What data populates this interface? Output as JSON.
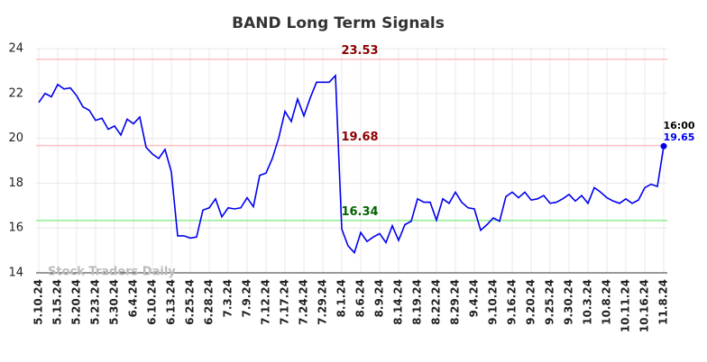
{
  "chart_data": {
    "type": "line",
    "title": "BAND Long Term Signals",
    "categories": [
      "5.10.24",
      null,
      null,
      "5.15.24",
      null,
      null,
      "5.20.24",
      null,
      null,
      "5.23.24",
      null,
      null,
      "5.30.24",
      null,
      null,
      "6.4.24",
      null,
      null,
      "6.10.24",
      null,
      null,
      "6.13.24",
      null,
      null,
      "6.25.24",
      null,
      null,
      "6.28.24",
      null,
      null,
      "7.3.24",
      null,
      null,
      "7.9.24",
      null,
      null,
      "7.12.24",
      null,
      null,
      "7.17.24",
      null,
      null,
      "7.24.24",
      null,
      null,
      "7.29.24",
      null,
      null,
      "8.1.24",
      null,
      null,
      "8.6.24",
      null,
      null,
      "8.9.24",
      null,
      null,
      "8.14.24",
      null,
      null,
      "8.19.24",
      null,
      null,
      "8.22.24",
      null,
      null,
      "8.29.24",
      null,
      null,
      "9.4.24",
      null,
      null,
      "9.10.24",
      null,
      null,
      "9.16.24",
      null,
      null,
      "9.20.24",
      null,
      null,
      "9.25.24",
      null,
      null,
      "9.30.24",
      null,
      null,
      "10.3.24",
      null,
      null,
      "10.8.24",
      null,
      null,
      "10.11.24",
      null,
      null,
      "10.16.24",
      null,
      null,
      "11.8.24"
    ],
    "values": [
      21.6,
      22.0,
      21.85,
      22.4,
      22.2,
      22.25,
      21.9,
      21.4,
      21.25,
      20.8,
      20.9,
      20.4,
      20.55,
      20.15,
      20.85,
      20.65,
      20.95,
      19.6,
      19.3,
      19.1,
      19.5,
      18.5,
      15.65,
      15.65,
      15.55,
      15.6,
      16.8,
      16.9,
      17.3,
      16.5,
      16.9,
      16.85,
      16.9,
      17.35,
      16.95,
      18.35,
      18.45,
      19.1,
      20.0,
      21.2,
      20.75,
      21.75,
      21.0,
      21.8,
      22.5,
      22.5,
      22.5,
      22.8,
      15.95,
      15.2,
      14.9,
      15.8,
      15.4,
      15.6,
      15.75,
      15.35,
      16.1,
      15.45,
      16.15,
      16.3,
      17.3,
      17.15,
      17.15,
      16.35,
      17.3,
      17.1,
      17.6,
      17.15,
      16.9,
      16.85,
      15.9,
      16.15,
      16.45,
      16.3,
      17.4,
      17.6,
      17.35,
      17.6,
      17.25,
      17.3,
      17.45,
      17.1,
      17.15,
      17.3,
      17.5,
      17.2,
      17.45,
      17.1,
      17.8,
      17.6,
      17.35,
      17.2,
      17.1,
      17.3,
      17.1,
      17.25,
      17.8,
      17.95,
      17.85,
      19.65
    ],
    "color": "#0000ee",
    "ylim": [
      14,
      24
    ],
    "yticks": [
      14,
      16,
      18,
      20,
      22,
      24
    ],
    "grid": true,
    "hlines": [
      {
        "value": 23.53,
        "color": "#ffc0c0",
        "label_color": "#8b0000"
      },
      {
        "value": 19.68,
        "color": "#ffc0c0",
        "label_color": "#8b0000"
      },
      {
        "value": 16.34,
        "color": "#90ee90",
        "label_color": "#006400"
      }
    ],
    "last_time": "16:00",
    "watermark": "Stock Traders Daily"
  }
}
